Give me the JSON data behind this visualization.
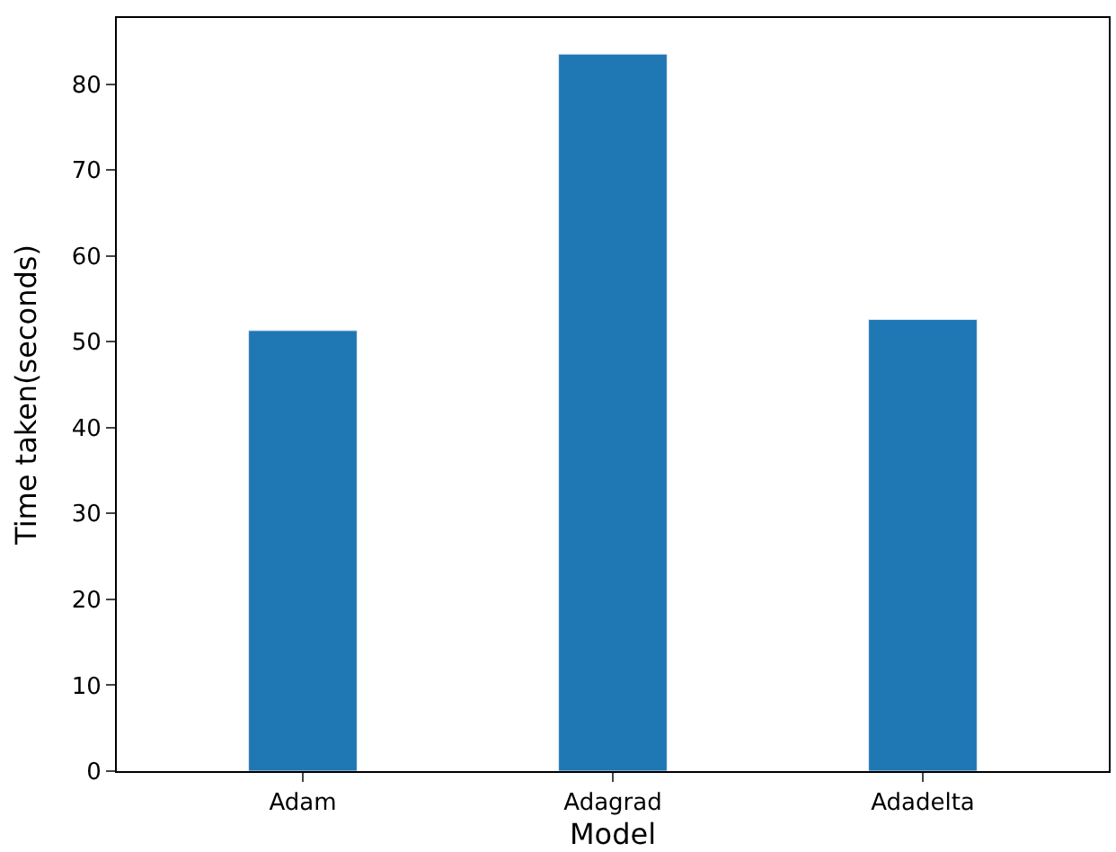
{
  "chart_data": {
    "type": "bar",
    "categories": [
      "Adam",
      "Adagrad",
      "Adadelta"
    ],
    "values": [
      51.3,
      83.5,
      52.6
    ],
    "color": "#1f77b4",
    "xlabel": "Model",
    "ylabel": "Time taken(seconds)",
    "ylim": [
      0,
      87.7
    ],
    "yticks": [
      0,
      10,
      20,
      30,
      40,
      50,
      60,
      70,
      80
    ]
  }
}
